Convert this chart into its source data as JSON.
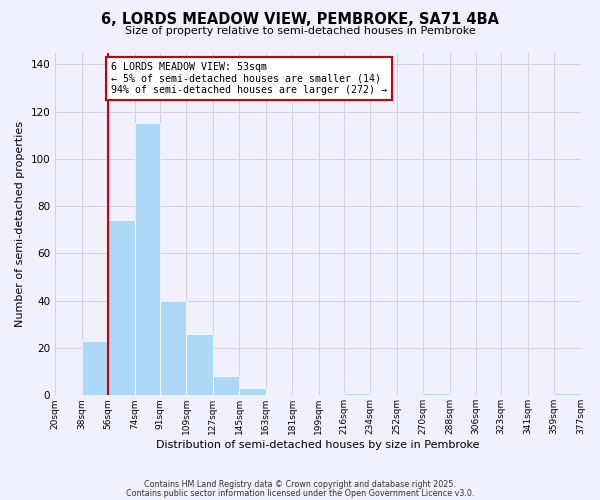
{
  "title": "6, LORDS MEADOW VIEW, PEMBROKE, SA71 4BA",
  "subtitle": "Size of property relative to semi-detached houses in Pembroke",
  "xlabel": "Distribution of semi-detached houses by size in Pembroke",
  "ylabel": "Number of semi-detached properties",
  "bar_edges": [
    20,
    38,
    56,
    74,
    91,
    109,
    127,
    145,
    163,
    181,
    199,
    216,
    234,
    252,
    270,
    288,
    306,
    323,
    341,
    359,
    377
  ],
  "bar_heights": [
    0,
    23,
    74,
    115,
    40,
    26,
    8,
    3,
    0,
    0,
    0,
    1,
    0,
    0,
    1,
    0,
    0,
    0,
    0,
    1
  ],
  "bar_color": "#add8f7",
  "property_line_x": 56,
  "property_line_color": "#cc0000",
  "annotation_title": "6 LORDS MEADOW VIEW: 53sqm",
  "annotation_line1": "← 5% of semi-detached houses are smaller (14)",
  "annotation_line2": "94% of semi-detached houses are larger (272) →",
  "annotation_box_edge_color": "#cc0000",
  "ylim": [
    0,
    145
  ],
  "yticks": [
    0,
    20,
    40,
    60,
    80,
    100,
    120,
    140
  ],
  "tick_labels": [
    "20sqm",
    "38sqm",
    "56sqm",
    "74sqm",
    "91sqm",
    "109sqm",
    "127sqm",
    "145sqm",
    "163sqm",
    "181sqm",
    "199sqm",
    "216sqm",
    "234sqm",
    "252sqm",
    "270sqm",
    "288sqm",
    "306sqm",
    "323sqm",
    "341sqm",
    "359sqm",
    "377sqm"
  ],
  "footer1": "Contains HM Land Registry data © Crown copyright and database right 2025.",
  "footer2": "Contains public sector information licensed under the Open Government Licence v3.0.",
  "bg_color": "#f0f0ff",
  "grid_color": "#d0d0ee"
}
